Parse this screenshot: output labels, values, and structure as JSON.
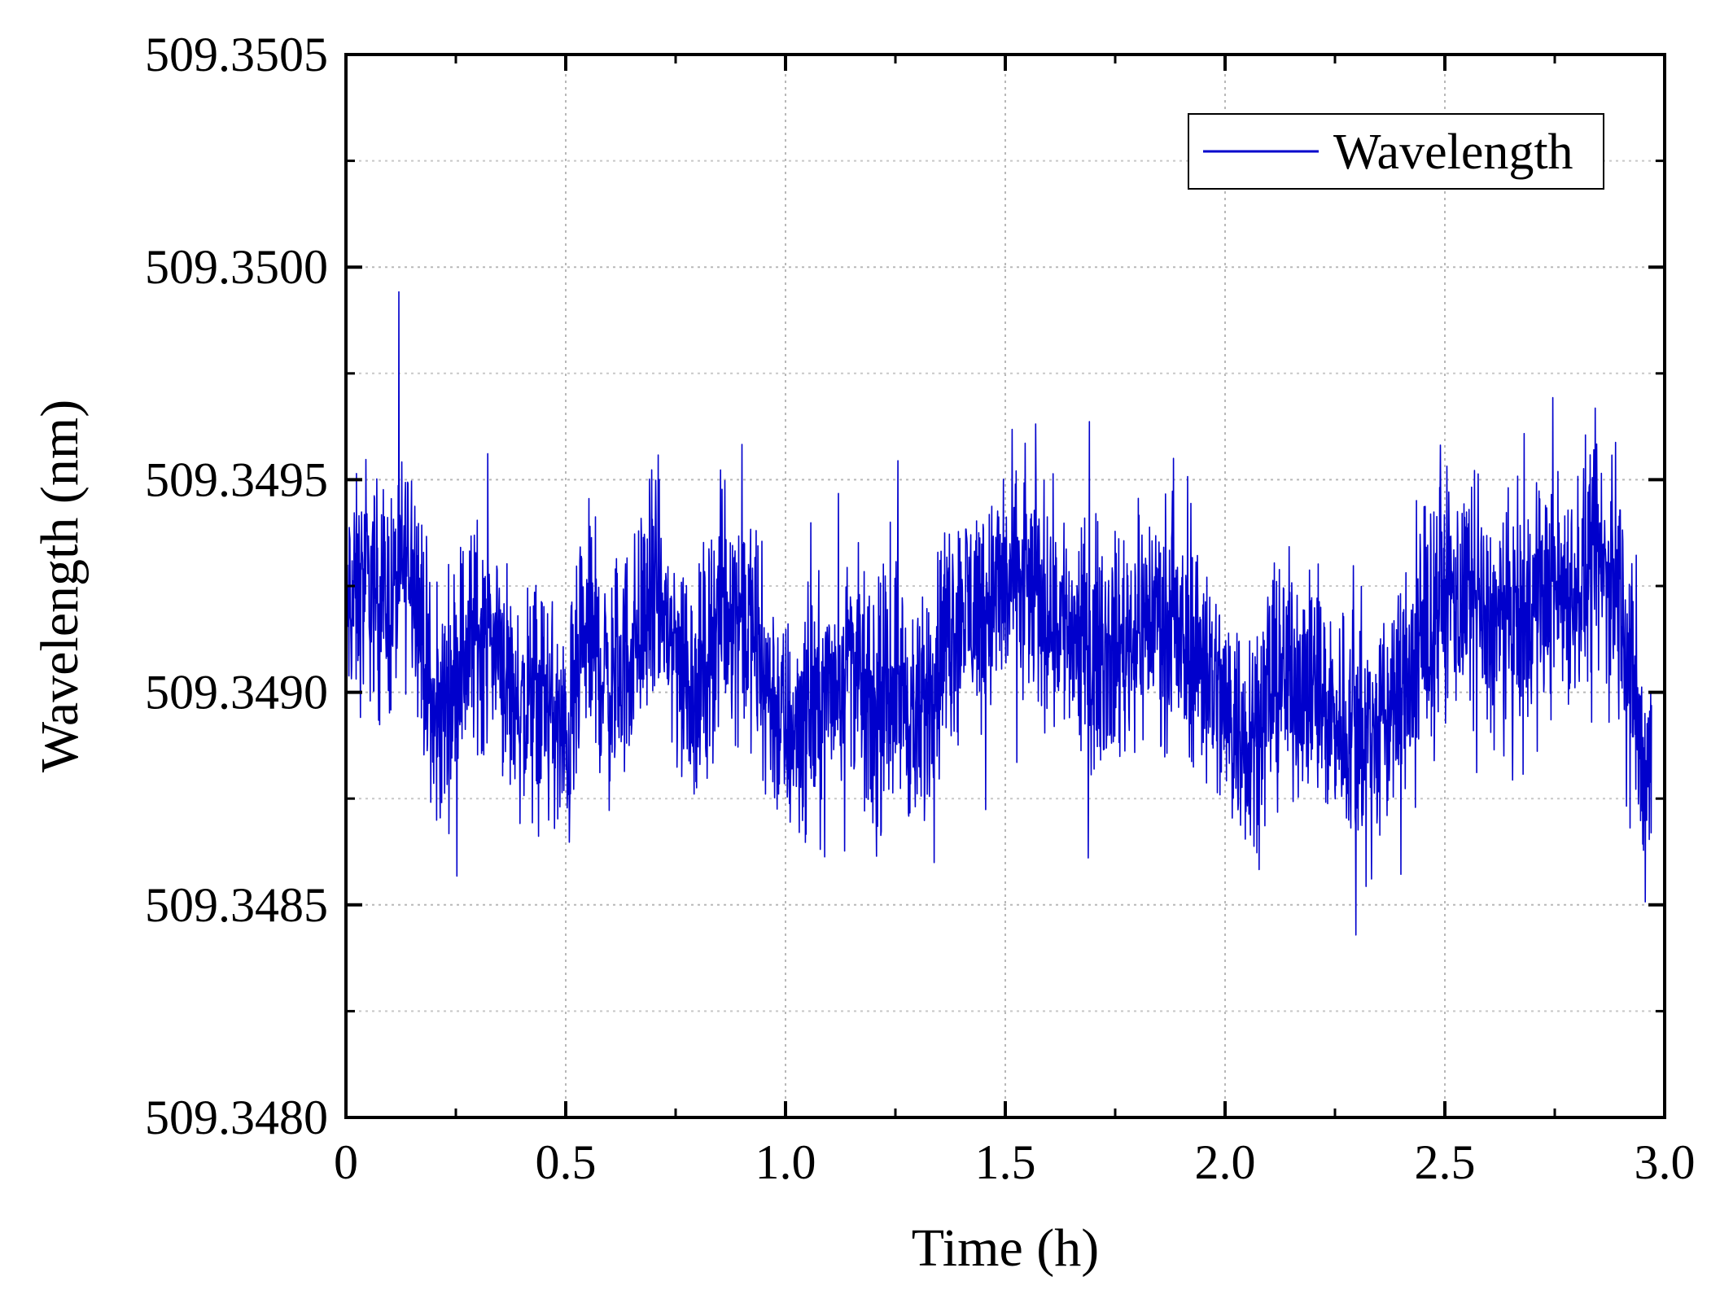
{
  "chart_data": {
    "type": "line",
    "title": "",
    "xlabel": "Time (h)",
    "ylabel": "Wavelength (nm)",
    "xlim": [
      0,
      3.0
    ],
    "ylim": [
      509.348,
      509.3505
    ],
    "x_ticks": [
      0,
      0.5,
      1.0,
      1.5,
      2.0,
      2.5,
      3.0
    ],
    "x_tick_labels": [
      "0",
      "0.5",
      "1.0",
      "1.5",
      "2.0",
      "2.5",
      "3.0"
    ],
    "y_ticks": [
      509.348,
      509.3485,
      509.349,
      509.3495,
      509.35,
      509.3505
    ],
    "y_tick_labels": [
      "509.3480",
      "509.3485",
      "509.3490",
      "509.3495",
      "509.3500",
      "509.3505"
    ],
    "grid": true,
    "legend_position": "top-right",
    "series": [
      {
        "name": "Wavelength",
        "color": "#0000cc",
        "x": [
          0,
          0.05,
          0.1,
          0.15,
          0.2,
          0.25,
          0.3,
          0.35,
          0.4,
          0.45,
          0.5,
          0.55,
          0.6,
          0.65,
          0.7,
          0.75,
          0.8,
          0.85,
          0.9,
          0.95,
          1.0,
          1.05,
          1.1,
          1.15,
          1.2,
          1.25,
          1.3,
          1.35,
          1.4,
          1.45,
          1.5,
          1.55,
          1.6,
          1.65,
          1.7,
          1.75,
          1.8,
          1.85,
          1.9,
          1.95,
          2.0,
          2.05,
          2.1,
          2.15,
          2.2,
          2.25,
          2.3,
          2.35,
          2.4,
          2.45,
          2.5,
          2.55,
          2.6,
          2.65,
          2.7,
          2.75,
          2.8,
          2.85,
          2.9,
          2.95,
          2.97
        ],
        "y": [
          509.3492,
          509.34925,
          509.3492,
          509.34935,
          509.3489,
          509.34905,
          509.34915,
          509.3491,
          509.34895,
          509.349,
          509.34885,
          509.34915,
          509.349,
          509.3491,
          509.34925,
          509.3491,
          509.349,
          509.3492,
          509.3492,
          509.34905,
          509.3489,
          509.34895,
          509.349,
          509.3491,
          509.3489,
          509.34905,
          509.3489,
          509.3491,
          509.3492,
          509.3492,
          509.34925,
          509.34925,
          509.3492,
          509.34915,
          509.3491,
          509.3491,
          509.34915,
          509.3492,
          509.3491,
          509.3491,
          509.34895,
          509.3489,
          509.349,
          509.34905,
          509.349,
          509.34895,
          509.3489,
          509.3489,
          509.349,
          509.3491,
          509.34925,
          509.3492,
          509.34915,
          509.34915,
          509.3492,
          509.34925,
          509.34925,
          509.3493,
          509.34925,
          509.3488,
          509.3489
        ]
      }
    ]
  }
}
